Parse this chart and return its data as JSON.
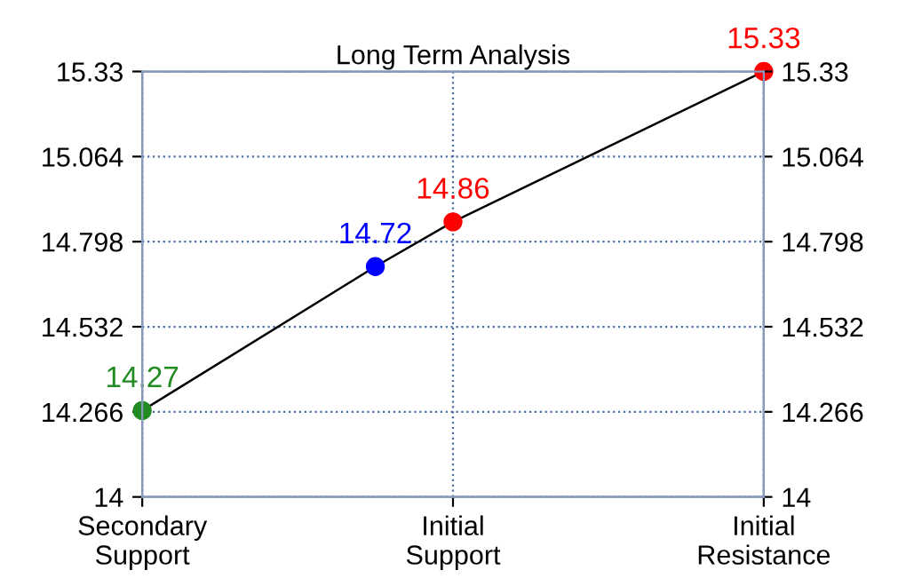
{
  "chart_data": {
    "type": "line",
    "title": "Long Term Analysis",
    "categories": [
      "Secondary\nSupport",
      null,
      null,
      null,
      "Initial\nSupport",
      null,
      null,
      null,
      "Initial\nResistance"
    ],
    "ylim": [
      14,
      15.33
    ],
    "yticks": [
      14,
      14.266,
      14.532,
      14.798,
      15.064,
      15.33
    ],
    "y2lim": [
      14,
      15.33
    ],
    "y2ticks": [
      14,
      14.266,
      14.532,
      14.798,
      15.064,
      15.33
    ],
    "series": [
      {
        "color": "#000000",
        "colors": [
          "#228b22",
          null,
          null,
          "#0000ff",
          "#ff0000",
          null,
          null,
          null,
          "#ff0000"
        ],
        "values": [
          14.27,
          null,
          null,
          14.72,
          14.86,
          null,
          null,
          null,
          15.33
        ],
        "value_labels": [
          "14.27",
          null,
          null,
          "14.72",
          "14.86",
          null,
          null,
          null,
          "15.33"
        ]
      }
    ],
    "marker": "circle",
    "line_style": "solid",
    "grid": true,
    "legend": false
  }
}
